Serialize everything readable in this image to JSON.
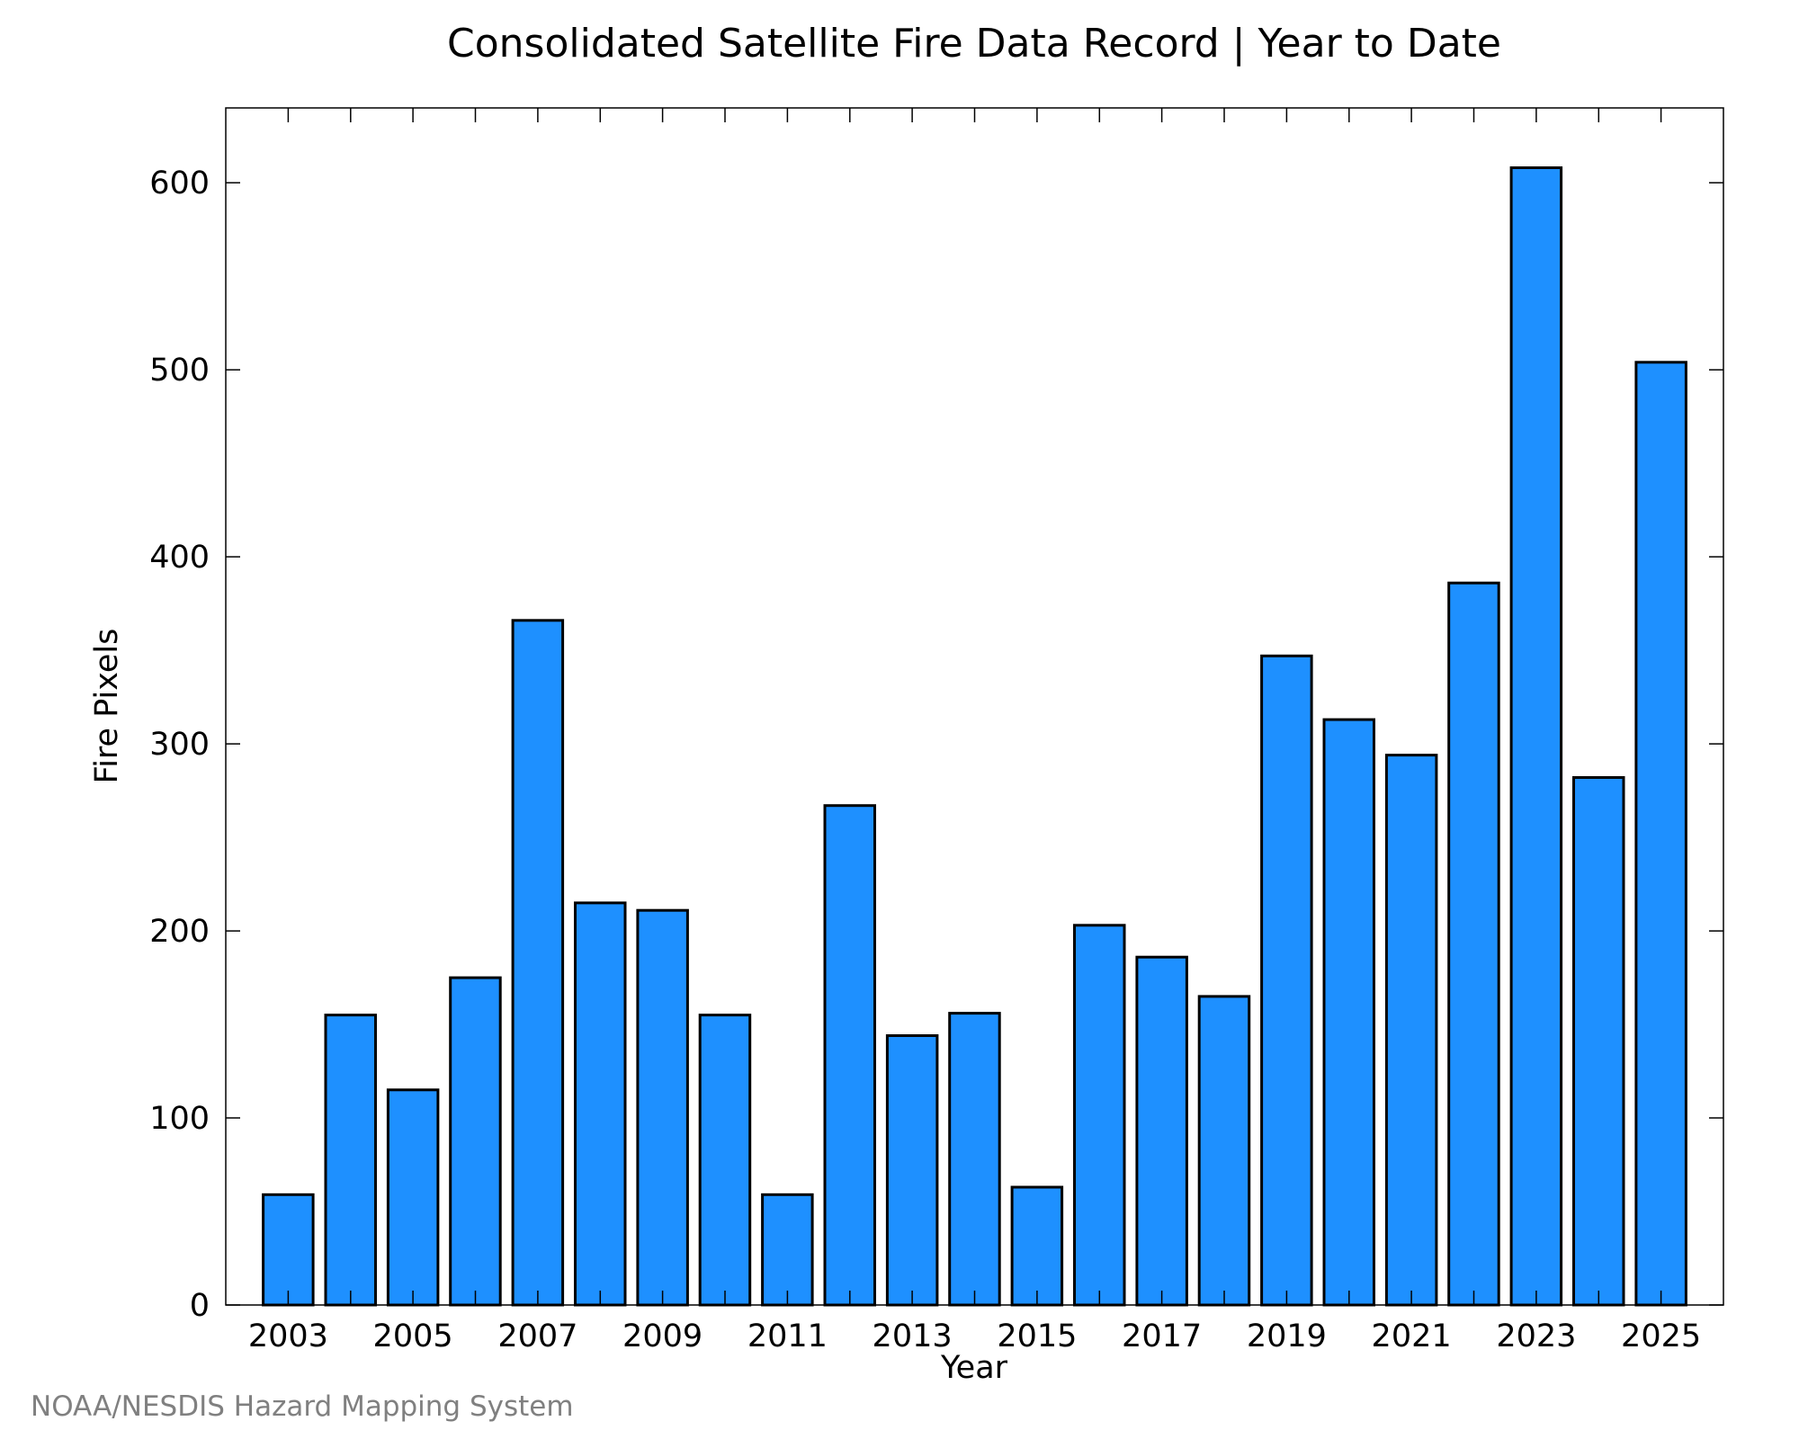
{
  "chart_data": {
    "type": "bar",
    "title": "Consolidated Satellite Fire Data Record | Year to Date",
    "xlabel": "Year",
    "ylabel": "Fire Pixels",
    "credit": "NOAA/NESDIS Hazard Mapping System",
    "categories": [
      2003,
      2004,
      2005,
      2006,
      2007,
      2008,
      2009,
      2010,
      2011,
      2012,
      2013,
      2014,
      2015,
      2016,
      2017,
      2018,
      2019,
      2020,
      2021,
      2022,
      2023,
      2024,
      2025
    ],
    "values": [
      59,
      155,
      115,
      175,
      366,
      215,
      211,
      155,
      59,
      267,
      144,
      156,
      63,
      203,
      186,
      165,
      347,
      313,
      294,
      386,
      608,
      282,
      504
    ],
    "x_tick_labels": [
      "2003",
      "2005",
      "2007",
      "2009",
      "2011",
      "2013",
      "2015",
      "2017",
      "2019",
      "2021",
      "2023",
      "2025"
    ],
    "y_tick_labels": [
      "0",
      "100",
      "200",
      "300",
      "400",
      "500",
      "600"
    ],
    "y_ticks": [
      0,
      100,
      200,
      300,
      400,
      500,
      600
    ],
    "ylim": [
      0,
      640
    ],
    "xlim": [
      2002,
      2026
    ],
    "bar_color": "#1E90FF",
    "edge_color": "#000000",
    "grid": false,
    "legend": "none"
  }
}
